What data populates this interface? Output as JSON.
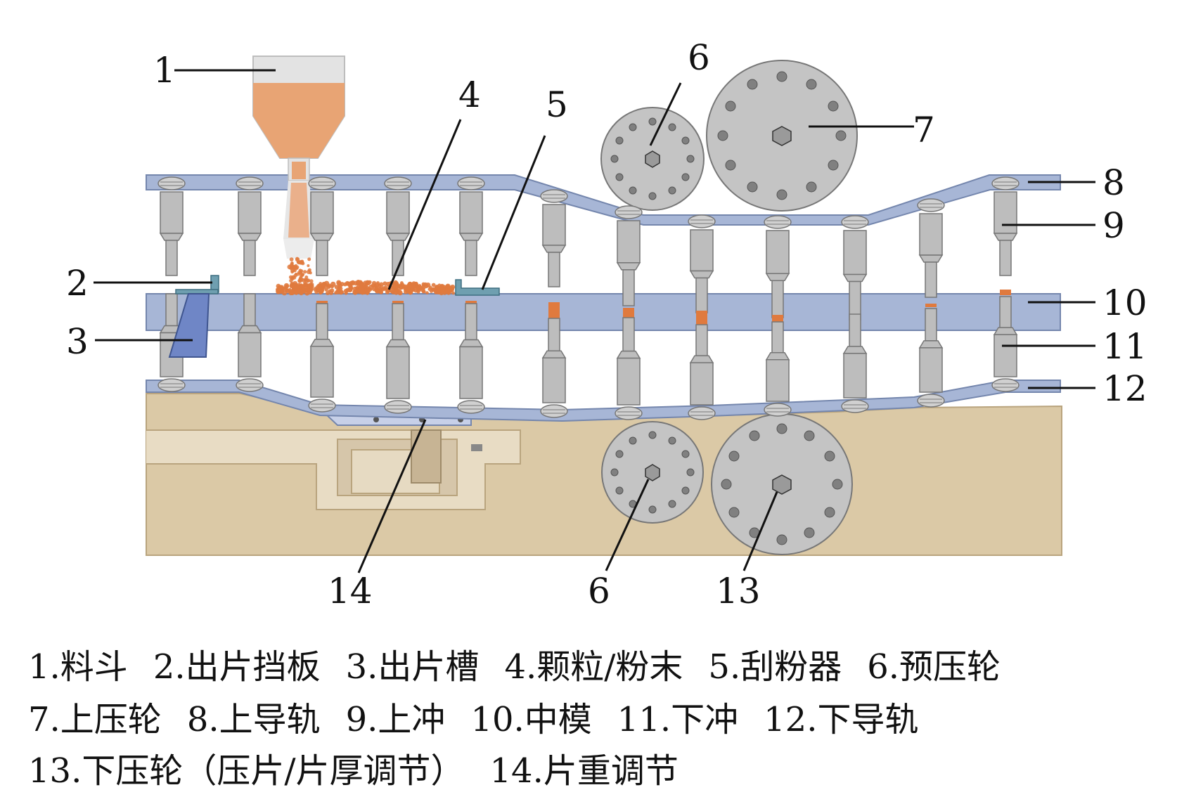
{
  "labels": {
    "hopper": "1",
    "ejection_baffle": "2",
    "ejection_chute": "3",
    "granules": "4",
    "scraper": "5",
    "pre_wheel_top": "6",
    "upper_wheel": "7",
    "upper_rail": "8",
    "upper_punch": "9",
    "middle_die": "10",
    "lower_punch": "11",
    "lower_rail": "12",
    "lower_wheel": "13",
    "weight_adjust": "14",
    "pre_wheel_bottom": "6"
  },
  "legend": {
    "row1": [
      "1.料斗",
      "2.出片挡板",
      "3.出片槽",
      "4.颗粒/粉末",
      "5.刮粉器",
      "6.预压轮"
    ],
    "row2": [
      "7.上压轮",
      "8.上导轨",
      "9.上冲",
      "10.中模",
      "11.下冲",
      "12.下导轨"
    ],
    "row3": [
      "13.下压轮（压片/片厚调节）",
      "14.片重调节"
    ]
  },
  "colors": {
    "rail": "#a7b6d6",
    "rail_stroke": "#7486ad",
    "punch": "#bdbdbd",
    "punch_stroke": "#777777",
    "powder": "#e07a3e",
    "wheel": "#c4c4c4",
    "base": "#dbc9a6",
    "chute": "#6f86c6"
  }
}
